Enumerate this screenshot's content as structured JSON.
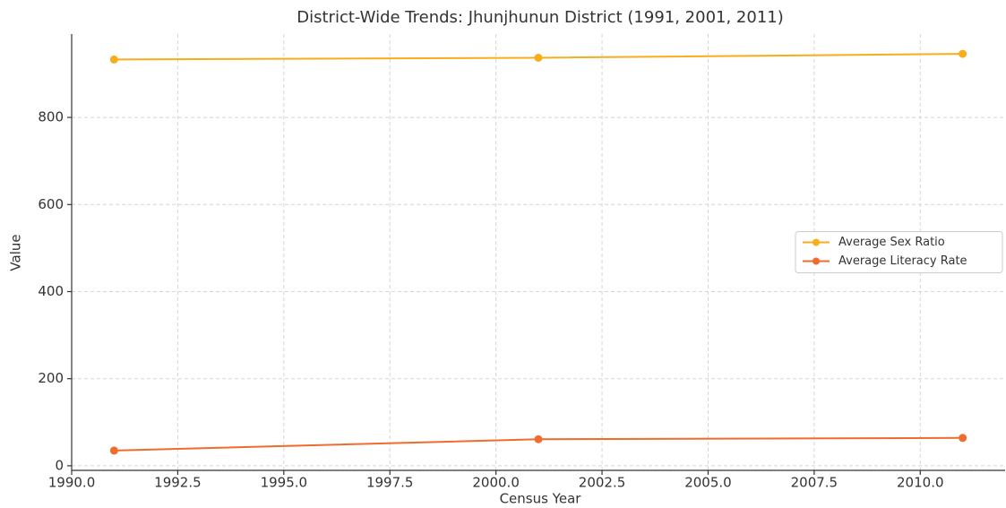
{
  "chart_data": {
    "type": "line",
    "title": "District-Wide Trends: Jhunjhunun District (1991, 2001, 2011)",
    "xlabel": "Census Year",
    "ylabel": "Value",
    "x": [
      1991,
      2001,
      2011
    ],
    "series": [
      {
        "name": "Average Sex Ratio",
        "color": "#f9ad1c",
        "values": [
          933,
          937,
          946
        ]
      },
      {
        "name": "Average Literacy Rate",
        "color": "#ef6c2c",
        "values": [
          35,
          61,
          64
        ]
      }
    ],
    "xlim": [
      1990,
      2012
    ],
    "xticks": [
      {
        "value": 1990,
        "label": "1990.0"
      },
      {
        "value": 1992.5,
        "label": "1992.5"
      },
      {
        "value": 1995,
        "label": "1995.0"
      },
      {
        "value": 1997.5,
        "label": "1997.5"
      },
      {
        "value": 2000,
        "label": "2000.0"
      },
      {
        "value": 2002.5,
        "label": "2002.5"
      },
      {
        "value": 2005,
        "label": "2005.0"
      },
      {
        "value": 2007.5,
        "label": "2007.5"
      },
      {
        "value": 2010,
        "label": "2010.0"
      }
    ],
    "ylim": [
      -10.5,
      991.5
    ],
    "yticks": [
      0,
      200,
      400,
      600,
      800
    ],
    "grid": true,
    "legend": "center right"
  }
}
